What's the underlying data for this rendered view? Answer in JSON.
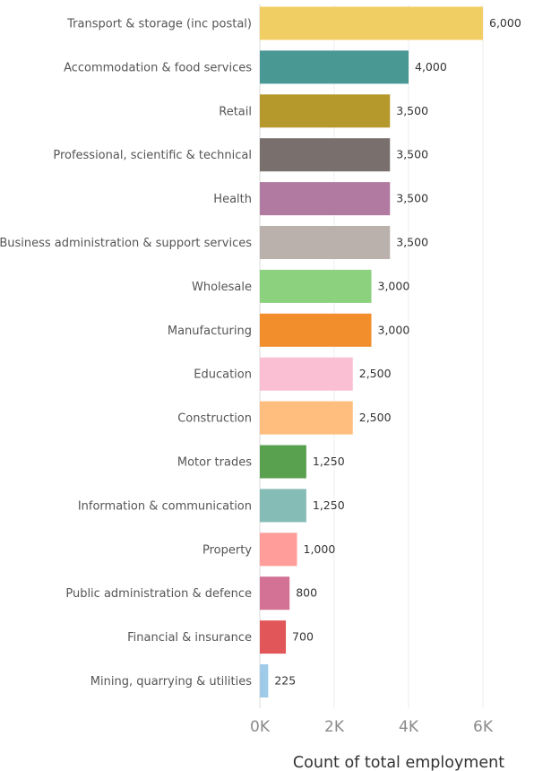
{
  "chart_data": {
    "type": "bar",
    "orientation": "horizontal",
    "categories": [
      "Transport & storage (inc postal)",
      "Accommodation & food services",
      "Retail",
      "Professional, scientific & technical",
      "Health",
      "Business administration & support services",
      "Wholesale",
      "Manufacturing",
      "Education",
      "Construction",
      "Motor trades",
      "Information & communication",
      "Property",
      "Public administration & defence",
      "Financial & insurance",
      "Mining, quarrying & utilities"
    ],
    "values": [
      6000,
      4000,
      3500,
      3500,
      3500,
      3500,
      3000,
      3000,
      2500,
      2500,
      1250,
      1250,
      1000,
      800,
      700,
      225
    ],
    "value_labels": [
      "6,000",
      "4,000",
      "3,500",
      "3,500",
      "3,500",
      "3,500",
      "3,000",
      "3,000",
      "2,500",
      "2,500",
      "1,250",
      "1,250",
      "1,000",
      "800",
      "700",
      "225"
    ],
    "colors": [
      "#F1CE63",
      "#499894",
      "#B6992D",
      "#79706E",
      "#B07AA1",
      "#BAB0AC",
      "#8CD17D",
      "#F28E2B",
      "#FABFD2",
      "#FFBE7D",
      "#59A14F",
      "#86BCB6",
      "#FF9D9A",
      "#D37295",
      "#E15759",
      "#A0CBE8"
    ],
    "xlabel": "Count of total employment",
    "xlim": [
      0,
      7000
    ],
    "xticks": [
      0,
      2000,
      4000,
      6000
    ],
    "xtick_labels": [
      "0K",
      "2K",
      "4K",
      "6K"
    ],
    "grid": true
  }
}
